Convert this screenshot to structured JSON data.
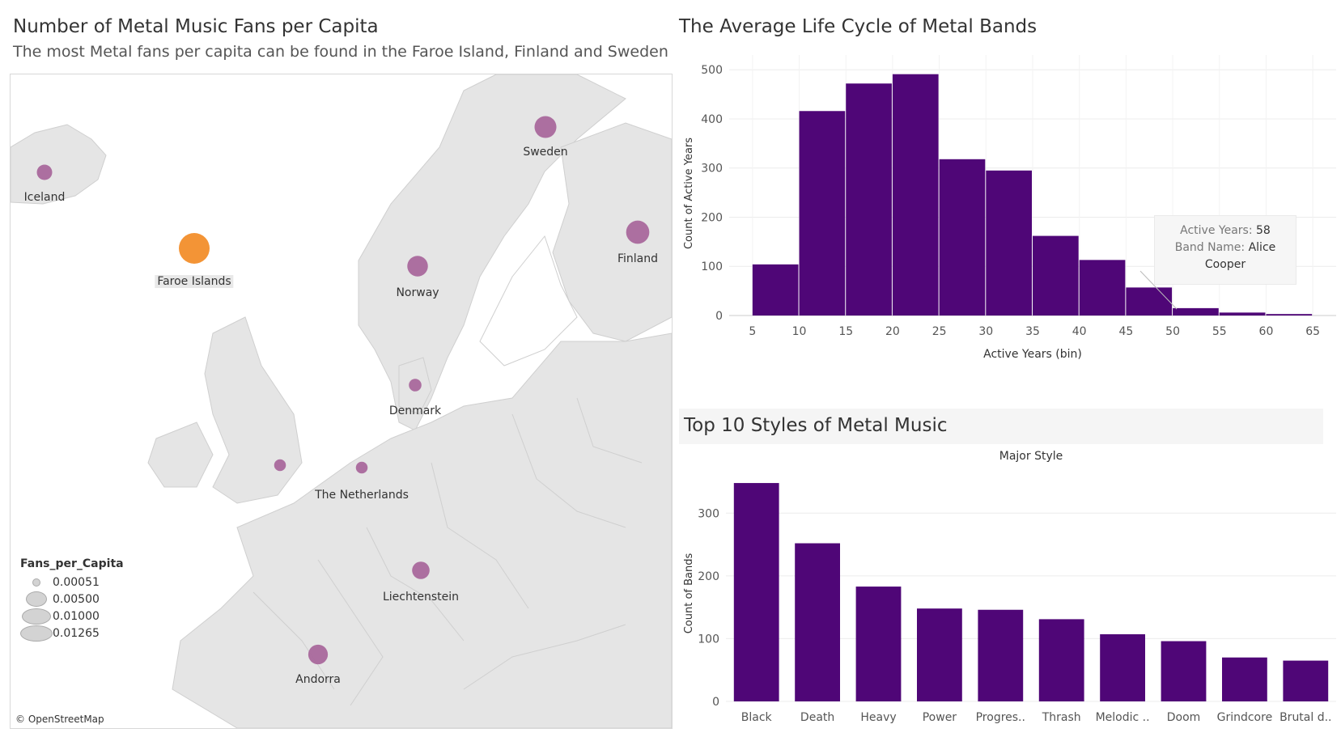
{
  "map": {
    "title": "Number of Metal Music Fans per Capita",
    "subtitle": "The most Metal fans per capita can be found in the Faroe Island, Finland and Sweden",
    "attribution": "© OpenStreetMap",
    "legend": {
      "title": "Fans_per_Capita",
      "values": [
        "0.00051",
        "0.00500",
        "0.01000",
        "0.01265"
      ]
    },
    "points": [
      {
        "label": "Iceland",
        "value": 0.0017,
        "color": "#a9689c"
      },
      {
        "label": "Faroe Islands",
        "value": 0.01265,
        "color": "#f28e2b",
        "highlight": true
      },
      {
        "label": "Sweden",
        "value": 0.0051,
        "color": "#a9689c"
      },
      {
        "label": "Finland",
        "value": 0.006,
        "color": "#a9689c"
      },
      {
        "label": "Norway",
        "value": 0.0043,
        "color": "#a9689c"
      },
      {
        "label": "Denmark",
        "value": 0.0008,
        "color": "#a9689c"
      },
      {
        "label": "The Netherlands",
        "value": 0.0006,
        "color": "#a9689c"
      },
      {
        "label": "",
        "value": 0.0006,
        "color": "#a9689c"
      },
      {
        "label": "Liechtenstein",
        "value": 0.0026,
        "color": "#a9689c"
      },
      {
        "label": "Andorra",
        "value": 0.0037,
        "color": "#a9689c"
      }
    ]
  },
  "histogram": {
    "title": "The Average Life Cycle of Metal Bands",
    "tooltip": {
      "k1": "Active Years:",
      "v1": "58",
      "k2": "Band Name:",
      "v2a": "Alice",
      "v2b": "Cooper"
    }
  },
  "bars": {
    "title": "Top 10 Styles of Metal Music"
  },
  "chart_data": [
    {
      "type": "bar",
      "title": "The Average Life Cycle of Metal Bands",
      "xlabel": "Active Years (bin)",
      "ylabel": "Count of Active Years",
      "bin_starts": [
        5,
        10,
        15,
        20,
        25,
        30,
        35,
        40,
        45,
        50,
        55,
        60
      ],
      "values": [
        104,
        416,
        472,
        491,
        318,
        295,
        162,
        113,
        57,
        15,
        6,
        3
      ],
      "xticks": [
        "5",
        "10",
        "15",
        "20",
        "25",
        "30",
        "35",
        "40",
        "45",
        "50",
        "55",
        "60",
        "65"
      ],
      "yticks": [
        "0",
        "100",
        "200",
        "300",
        "400",
        "500"
      ],
      "ylim": [
        0,
        530
      ],
      "xlim": [
        2.5,
        67.5
      ],
      "color": "#4f0677",
      "grid": true
    },
    {
      "type": "bar",
      "title": "Top 10 Styles of Metal Music",
      "header": "Major Style",
      "ylabel": "Count of Bands",
      "categories": [
        "Black",
        "Death",
        "Heavy",
        "Power",
        "Progres..",
        "Thrash",
        "Melodic ..",
        "Doom",
        "Grindcore",
        "Brutal d.."
      ],
      "values": [
        348,
        252,
        183,
        148,
        146,
        131,
        107,
        96,
        70,
        65
      ],
      "yticks": [
        "0",
        "100",
        "200",
        "300"
      ],
      "ylim": [
        0,
        370
      ],
      "color": "#4f0677",
      "grid": true
    }
  ]
}
